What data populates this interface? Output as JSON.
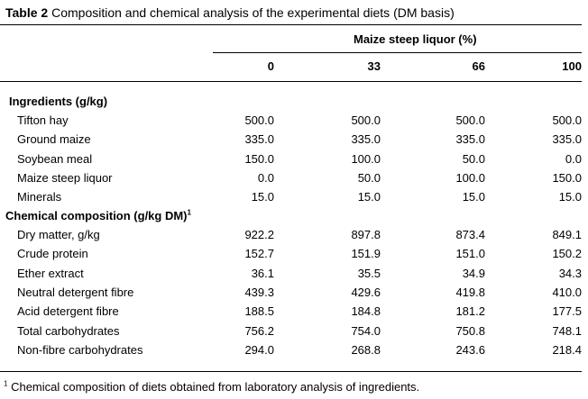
{
  "caption": {
    "label": "Table 2",
    "text": "Composition and chemical analysis of the experimental diets (DM basis)"
  },
  "header": {
    "group_label": "Maize steep liquor (%)",
    "columns": [
      "0",
      "33",
      "66",
      "100"
    ]
  },
  "sections": [
    {
      "title": "Ingredients (g/kg)",
      "title_sup": "",
      "rows": [
        {
          "label": "Tifton hay",
          "values": [
            "500.0",
            "500.0",
            "500.0",
            "500.0"
          ]
        },
        {
          "label": "Ground maize",
          "values": [
            "335.0",
            "335.0",
            "335.0",
            "335.0"
          ]
        },
        {
          "label": "Soybean meal",
          "values": [
            "150.0",
            "100.0",
            "50.0",
            "0.0"
          ]
        },
        {
          "label": "Maize steep liquor",
          "values": [
            "0.0",
            "50.0",
            "100.0",
            "150.0"
          ]
        },
        {
          "label": "Minerals",
          "values": [
            "15.0",
            "15.0",
            "15.0",
            "15.0"
          ]
        }
      ]
    },
    {
      "title": "Chemical composition (g/kg DM)",
      "title_sup": "1",
      "rows": [
        {
          "label": "Dry matter, g/kg",
          "values": [
            "922.2",
            "897.8",
            "873.4",
            "849.1"
          ]
        },
        {
          "label": "Crude protein",
          "values": [
            "152.7",
            "151.9",
            "151.0",
            "150.2"
          ]
        },
        {
          "label": "Ether extract",
          "values": [
            "36.1",
            "35.5",
            "34.9",
            "34.3"
          ]
        },
        {
          "label": "Neutral detergent fibre",
          "values": [
            "439.3",
            "429.6",
            "419.8",
            "410.0"
          ]
        },
        {
          "label": "Acid detergent fibre",
          "values": [
            "188.5",
            "184.8",
            "181.2",
            "177.5"
          ]
        },
        {
          "label": "Total carbohydrates",
          "values": [
            "756.2",
            "754.0",
            "750.8",
            "748.1"
          ]
        },
        {
          "label": "Non-fibre carbohydrates",
          "values": [
            "294.0",
            "268.8",
            "243.6",
            "218.4"
          ]
        }
      ]
    }
  ],
  "footnote": {
    "mark": "1",
    "text": "Chemical composition of diets obtained from laboratory analysis of ingredients."
  }
}
